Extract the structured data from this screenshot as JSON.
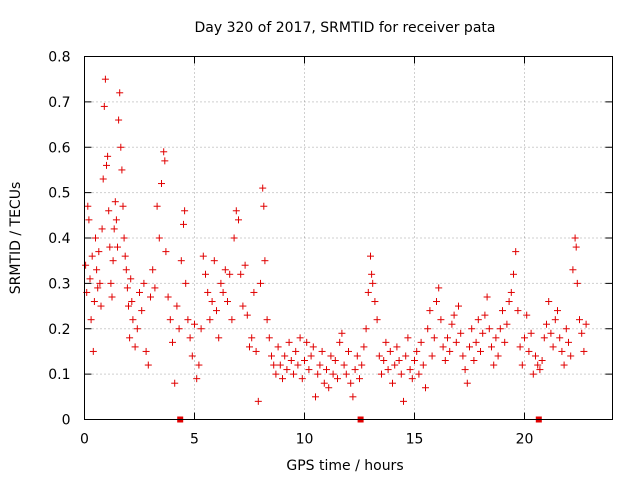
{
  "chart_data": {
    "type": "scatter",
    "title": "Day 320 of 2017, SRMTID for receiver pata",
    "xlabel": "GPS time / hours",
    "ylabel": "SRMTID / TECUs",
    "xlim": [
      0,
      24
    ],
    "ylim": [
      0,
      0.8
    ],
    "xticks": [
      0,
      5,
      10,
      15,
      20
    ],
    "xtick_labels": [
      "0",
      "5",
      "10",
      "15",
      "20"
    ],
    "yticks": [
      0,
      0.1,
      0.2,
      0.3,
      0.4,
      0.5,
      0.6,
      0.7,
      0.8
    ],
    "ytick_labels": [
      "0",
      "0.1",
      "0.2",
      "0.3",
      "0.4",
      "0.5",
      "0.6",
      "0.7",
      "0.8"
    ],
    "grid": true,
    "marker": "+",
    "color": "#e00000",
    "gap_markers_x": [
      4.35,
      12.55,
      20.65
    ],
    "series": [
      {
        "name": "SRMTID",
        "points": [
          [
            0.05,
            0.34
          ],
          [
            0.1,
            0.28
          ],
          [
            0.15,
            0.47
          ],
          [
            0.2,
            0.44
          ],
          [
            0.25,
            0.31
          ],
          [
            0.3,
            0.22
          ],
          [
            0.35,
            0.36
          ],
          [
            0.4,
            0.15
          ],
          [
            0.45,
            0.26
          ],
          [
            0.5,
            0.4
          ],
          [
            0.55,
            0.33
          ],
          [
            0.6,
            0.29
          ],
          [
            0.65,
            0.37
          ],
          [
            0.7,
            0.3
          ],
          [
            0.75,
            0.25
          ],
          [
            0.8,
            0.42
          ],
          [
            0.85,
            0.53
          ],
          [
            0.9,
            0.69
          ],
          [
            0.95,
            0.75
          ],
          [
            1.0,
            0.56
          ],
          [
            1.05,
            0.58
          ],
          [
            1.1,
            0.46
          ],
          [
            1.15,
            0.38
          ],
          [
            1.2,
            0.3
          ],
          [
            1.25,
            0.27
          ],
          [
            1.3,
            0.35
          ],
          [
            1.35,
            0.42
          ],
          [
            1.4,
            0.48
          ],
          [
            1.45,
            0.44
          ],
          [
            1.5,
            0.38
          ],
          [
            1.55,
            0.66
          ],
          [
            1.6,
            0.72
          ],
          [
            1.65,
            0.6
          ],
          [
            1.7,
            0.55
          ],
          [
            1.75,
            0.47
          ],
          [
            1.8,
            0.4
          ],
          [
            1.85,
            0.36
          ],
          [
            1.9,
            0.33
          ],
          [
            1.95,
            0.29
          ],
          [
            2.0,
            0.25
          ],
          [
            2.05,
            0.18
          ],
          [
            2.1,
            0.31
          ],
          [
            2.15,
            0.26
          ],
          [
            2.2,
            0.22
          ],
          [
            2.3,
            0.16
          ],
          [
            2.4,
            0.2
          ],
          [
            2.5,
            0.28
          ],
          [
            2.6,
            0.24
          ],
          [
            2.7,
            0.3
          ],
          [
            2.8,
            0.15
          ],
          [
            2.9,
            0.12
          ],
          [
            3.0,
            0.27
          ],
          [
            3.1,
            0.33
          ],
          [
            3.2,
            0.29
          ],
          [
            3.3,
            0.47
          ],
          [
            3.4,
            0.4
          ],
          [
            3.5,
            0.52
          ],
          [
            3.6,
            0.59
          ],
          [
            3.65,
            0.57
          ],
          [
            3.7,
            0.37
          ],
          [
            3.8,
            0.27
          ],
          [
            3.9,
            0.22
          ],
          [
            4.0,
            0.17
          ],
          [
            4.1,
            0.08
          ],
          [
            4.2,
            0.25
          ],
          [
            4.3,
            0.2
          ],
          [
            4.4,
            0.35
          ],
          [
            4.5,
            0.43
          ],
          [
            4.55,
            0.46
          ],
          [
            4.6,
            0.3
          ],
          [
            4.7,
            0.22
          ],
          [
            4.8,
            0.18
          ],
          [
            4.9,
            0.14
          ],
          [
            5.0,
            0.21
          ],
          [
            5.1,
            0.09
          ],
          [
            5.2,
            0.12
          ],
          [
            5.3,
            0.2
          ],
          [
            5.4,
            0.36
          ],
          [
            5.5,
            0.32
          ],
          [
            5.6,
            0.28
          ],
          [
            5.7,
            0.22
          ],
          [
            5.8,
            0.26
          ],
          [
            5.9,
            0.35
          ],
          [
            6.0,
            0.24
          ],
          [
            6.1,
            0.18
          ],
          [
            6.2,
            0.3
          ],
          [
            6.3,
            0.28
          ],
          [
            6.4,
            0.33
          ],
          [
            6.5,
            0.26
          ],
          [
            6.6,
            0.32
          ],
          [
            6.7,
            0.22
          ],
          [
            6.8,
            0.4
          ],
          [
            6.9,
            0.46
          ],
          [
            7.0,
            0.44
          ],
          [
            7.1,
            0.32
          ],
          [
            7.2,
            0.25
          ],
          [
            7.3,
            0.34
          ],
          [
            7.4,
            0.23
          ],
          [
            7.5,
            0.16
          ],
          [
            7.6,
            0.18
          ],
          [
            7.7,
            0.28
          ],
          [
            7.8,
            0.15
          ],
          [
            7.9,
            0.04
          ],
          [
            8.0,
            0.3
          ],
          [
            8.1,
            0.51
          ],
          [
            8.15,
            0.47
          ],
          [
            8.2,
            0.35
          ],
          [
            8.3,
            0.22
          ],
          [
            8.4,
            0.18
          ],
          [
            8.5,
            0.14
          ],
          [
            8.6,
            0.12
          ],
          [
            8.7,
            0.1
          ],
          [
            8.8,
            0.16
          ],
          [
            8.9,
            0.12
          ],
          [
            9.0,
            0.09
          ],
          [
            9.1,
            0.14
          ],
          [
            9.2,
            0.11
          ],
          [
            9.3,
            0.17
          ],
          [
            9.4,
            0.13
          ],
          [
            9.5,
            0.1
          ],
          [
            9.6,
            0.15
          ],
          [
            9.7,
            0.12
          ],
          [
            9.8,
            0.18
          ],
          [
            9.9,
            0.09
          ],
          [
            10.0,
            0.13
          ],
          [
            10.1,
            0.17
          ],
          [
            10.2,
            0.11
          ],
          [
            10.3,
            0.14
          ],
          [
            10.4,
            0.16
          ],
          [
            10.5,
            0.05
          ],
          [
            10.6,
            0.1
          ],
          [
            10.7,
            0.12
          ],
          [
            10.8,
            0.15
          ],
          [
            10.9,
            0.08
          ],
          [
            11.0,
            0.11
          ],
          [
            11.1,
            0.07
          ],
          [
            11.2,
            0.14
          ],
          [
            11.3,
            0.1
          ],
          [
            11.4,
            0.13
          ],
          [
            11.5,
            0.09
          ],
          [
            11.6,
            0.17
          ],
          [
            11.7,
            0.19
          ],
          [
            11.8,
            0.12
          ],
          [
            11.9,
            0.1
          ],
          [
            12.0,
            0.15
          ],
          [
            12.1,
            0.08
          ],
          [
            12.2,
            0.05
          ],
          [
            12.3,
            0.11
          ],
          [
            12.4,
            0.14
          ],
          [
            12.5,
            0.09
          ],
          [
            12.6,
            0.12
          ],
          [
            12.7,
            0.16
          ],
          [
            12.8,
            0.2
          ],
          [
            12.9,
            0.28
          ],
          [
            13.0,
            0.36
          ],
          [
            13.05,
            0.32
          ],
          [
            13.1,
            0.3
          ],
          [
            13.2,
            0.26
          ],
          [
            13.3,
            0.22
          ],
          [
            13.4,
            0.14
          ],
          [
            13.5,
            0.1
          ],
          [
            13.6,
            0.13
          ],
          [
            13.7,
            0.17
          ],
          [
            13.8,
            0.11
          ],
          [
            13.9,
            0.15
          ],
          [
            14.0,
            0.08
          ],
          [
            14.1,
            0.12
          ],
          [
            14.2,
            0.16
          ],
          [
            14.3,
            0.13
          ],
          [
            14.4,
            0.1
          ],
          [
            14.5,
            0.04
          ],
          [
            14.6,
            0.14
          ],
          [
            14.7,
            0.18
          ],
          [
            14.8,
            0.11
          ],
          [
            14.9,
            0.09
          ],
          [
            15.0,
            0.13
          ],
          [
            15.1,
            0.15
          ],
          [
            15.2,
            0.1
          ],
          [
            15.3,
            0.17
          ],
          [
            15.4,
            0.12
          ],
          [
            15.5,
            0.07
          ],
          [
            15.6,
            0.2
          ],
          [
            15.7,
            0.24
          ],
          [
            15.8,
            0.14
          ],
          [
            15.9,
            0.18
          ],
          [
            16.0,
            0.26
          ],
          [
            16.1,
            0.29
          ],
          [
            16.2,
            0.22
          ],
          [
            16.3,
            0.16
          ],
          [
            16.4,
            0.13
          ],
          [
            16.5,
            0.18
          ],
          [
            16.6,
            0.15
          ],
          [
            16.7,
            0.21
          ],
          [
            16.8,
            0.23
          ],
          [
            16.9,
            0.17
          ],
          [
            17.0,
            0.25
          ],
          [
            17.1,
            0.19
          ],
          [
            17.2,
            0.14
          ],
          [
            17.3,
            0.11
          ],
          [
            17.4,
            0.08
          ],
          [
            17.5,
            0.16
          ],
          [
            17.6,
            0.2
          ],
          [
            17.7,
            0.13
          ],
          [
            17.8,
            0.17
          ],
          [
            17.9,
            0.22
          ],
          [
            18.0,
            0.15
          ],
          [
            18.1,
            0.19
          ],
          [
            18.2,
            0.23
          ],
          [
            18.3,
            0.27
          ],
          [
            18.4,
            0.2
          ],
          [
            18.5,
            0.16
          ],
          [
            18.6,
            0.12
          ],
          [
            18.7,
            0.18
          ],
          [
            18.8,
            0.14
          ],
          [
            18.9,
            0.2
          ],
          [
            19.0,
            0.24
          ],
          [
            19.1,
            0.17
          ],
          [
            19.2,
            0.21
          ],
          [
            19.3,
            0.26
          ],
          [
            19.4,
            0.28
          ],
          [
            19.5,
            0.32
          ],
          [
            19.6,
            0.37
          ],
          [
            19.7,
            0.24
          ],
          [
            19.8,
            0.16
          ],
          [
            19.9,
            0.12
          ],
          [
            20.0,
            0.18
          ],
          [
            20.1,
            0.23
          ],
          [
            20.2,
            0.15
          ],
          [
            20.3,
            0.19
          ],
          [
            20.4,
            0.1
          ],
          [
            20.5,
            0.14
          ],
          [
            20.6,
            0.12
          ],
          [
            20.7,
            0.11
          ],
          [
            20.8,
            0.13
          ],
          [
            20.9,
            0.18
          ],
          [
            21.0,
            0.21
          ],
          [
            21.1,
            0.26
          ],
          [
            21.2,
            0.19
          ],
          [
            21.3,
            0.16
          ],
          [
            21.4,
            0.22
          ],
          [
            21.5,
            0.24
          ],
          [
            21.6,
            0.18
          ],
          [
            21.7,
            0.15
          ],
          [
            21.8,
            0.12
          ],
          [
            21.9,
            0.2
          ],
          [
            22.0,
            0.17
          ],
          [
            22.1,
            0.14
          ],
          [
            22.2,
            0.33
          ],
          [
            22.3,
            0.4
          ],
          [
            22.35,
            0.38
          ],
          [
            22.4,
            0.3
          ],
          [
            22.5,
            0.22
          ],
          [
            22.6,
            0.19
          ],
          [
            22.7,
            0.15
          ],
          [
            22.8,
            0.21
          ]
        ]
      }
    ]
  }
}
